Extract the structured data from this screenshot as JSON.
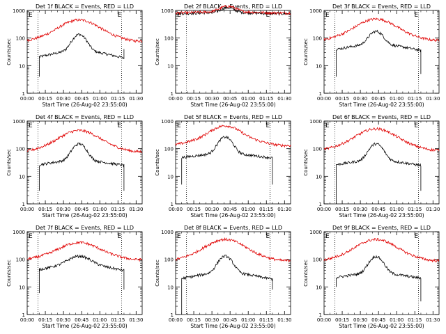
{
  "colors": {
    "events": "#000000",
    "lld": "#e00000",
    "axes": "#000000",
    "background": "#ffffff"
  },
  "chart_data": [
    {
      "type": "line",
      "title": "Det 1f BLACK = Events, RED = LLD",
      "ylabel": "Counts/sec",
      "xlabel": "Start Time (26-Aug-02 23:55:00)",
      "yscale": "log",
      "ylim": [
        1,
        1000
      ],
      "xlim": [
        "00:00",
        "01:35"
      ],
      "x_ticks": [
        "00:00",
        "00:15",
        "00:30",
        "00:45",
        "01:00",
        "01:15",
        "01:30"
      ],
      "y_ticks": [
        "1",
        "10",
        "100",
        "1000"
      ],
      "markers": [
        {
          "label": "E",
          "time": "00:09"
        },
        {
          "label": "E",
          "time": "01:18"
        }
      ],
      "series": [
        {
          "name": "Events",
          "start": "00:10",
          "end": "01:20",
          "base": 25,
          "bump": 4,
          "bump_center": "00:43",
          "bump_width": 5,
          "wave": 0.7,
          "edges": {
            "left": [
              4,
              25
            ],
            "right": [
              40,
              40
            ]
          }
        },
        {
          "name": "LLD",
          "start": "00:00",
          "end": "01:35",
          "base": 130,
          "bump": 2.5,
          "bump_center": "00:43",
          "bump_width": 12,
          "wave": 0.8,
          "edges": null
        }
      ]
    },
    {
      "type": "line",
      "title": "Det 2f BLACK = Events, RED = LLD",
      "ylabel": "Counts/sec",
      "xlabel": "Start Time (26-Aug-02 23:55:00)",
      "yscale": "log",
      "ylim": [
        1,
        1000
      ],
      "xlim": [
        "00:00",
        "01:35"
      ],
      "x_ticks": [
        "00:00",
        "00:15",
        "00:30",
        "00:45",
        "01:00",
        "01:15",
        "01:30"
      ],
      "y_ticks": [
        "1",
        "10",
        "100",
        "1000"
      ],
      "markers": [
        {
          "label": "E",
          "time": "00:09"
        },
        {
          "label": "E",
          "time": "01:18"
        }
      ],
      "series": [
        {
          "name": "Events",
          "start": "00:00",
          "end": "01:35",
          "base": 800,
          "bump": 1.5,
          "bump_center": "00:43",
          "bump_width": 5,
          "wave": 0.1,
          "edges": {
            "left": [
              30,
              800
            ],
            "right": [
              800,
              10
            ]
          }
        },
        {
          "name": "LLD",
          "start": "00:00",
          "end": "01:35",
          "base": 850,
          "bump": 1.6,
          "bump_center": "00:43",
          "bump_width": 6,
          "wave": 0.1,
          "edges": null
        }
      ]
    },
    {
      "type": "line",
      "title": "Det 3f BLACK = Events, RED = LLD",
      "ylabel": "Counts/sec",
      "xlabel": "Start Time (26-Aug-02 23:55:00)",
      "yscale": "log",
      "ylim": [
        1,
        1000
      ],
      "xlim": [
        "00:00",
        "01:35"
      ],
      "x_ticks": [
        "00:00",
        "00:15",
        "00:30",
        "00:45",
        "01:00",
        "01:15",
        "01:30"
      ],
      "y_ticks": [
        "1",
        "10",
        "100",
        "1000"
      ],
      "markers": [
        {
          "label": "E",
          "time": "00:09"
        },
        {
          "label": "E",
          "time": "01:18"
        }
      ],
      "series": [
        {
          "name": "Events",
          "start": "00:10",
          "end": "01:20",
          "base": 45,
          "bump": 3,
          "bump_center": "00:43",
          "bump_width": 5,
          "wave": 0.6,
          "edges": {
            "left": [
              4,
              45
            ],
            "right": [
              55,
              5
            ]
          }
        },
        {
          "name": "LLD",
          "start": "00:00",
          "end": "01:35",
          "base": 140,
          "bump": 2.5,
          "bump_center": "00:43",
          "bump_width": 12,
          "wave": 0.8,
          "edges": null
        }
      ]
    },
    {
      "type": "line",
      "title": "Det 4f BLACK = Events, RED = LLD",
      "ylabel": "Counts/sec",
      "xlabel": "Start Time (26-Aug-02 23:55:00)",
      "yscale": "log",
      "ylim": [
        1,
        1000
      ],
      "xlim": [
        "00:00",
        "01:35"
      ],
      "x_ticks": [
        "00:00",
        "00:15",
        "00:30",
        "00:45",
        "01:00",
        "01:15",
        "01:30"
      ],
      "y_ticks": [
        "1",
        "10",
        "100",
        "1000"
      ],
      "markers": [
        {
          "label": "E",
          "time": "00:09"
        },
        {
          "label": "E",
          "time": "01:18"
        }
      ],
      "series": [
        {
          "name": "Events",
          "start": "00:10",
          "end": "01:20",
          "base": 30,
          "bump": 4,
          "bump_center": "00:43",
          "bump_width": 5,
          "wave": 0.5,
          "edges": {
            "left": [
              3,
              30
            ],
            "right": [
              40,
              3
            ]
          }
        },
        {
          "name": "LLD",
          "start": "00:00",
          "end": "01:35",
          "base": 130,
          "bump": 2.5,
          "bump_center": "00:43",
          "bump_width": 12,
          "wave": 0.8,
          "edges": null
        }
      ]
    },
    {
      "type": "line",
      "title": "Det 5f BLACK = Events, RED = LLD",
      "ylabel": "Counts/sec",
      "xlabel": "Start Time (26-Aug-02 23:55:00)",
      "yscale": "log",
      "ylim": [
        1,
        1000
      ],
      "xlim": [
        "00:00",
        "01:35"
      ],
      "x_ticks": [
        "00:00",
        "00:15",
        "00:30",
        "00:45",
        "01:00",
        "01:15",
        "01:30"
      ],
      "y_ticks": [
        "1",
        "10",
        "100",
        "1000"
      ],
      "markers": [
        {
          "label": "E",
          "time": "00:09"
        },
        {
          "label": "E",
          "time": "01:18"
        }
      ],
      "series": [
        {
          "name": "Events",
          "start": "00:05",
          "end": "01:20",
          "base": 55,
          "bump": 4,
          "bump_center": "00:41",
          "bump_width": 5,
          "wave": 0.4,
          "edges": {
            "left": [
              5,
              55
            ],
            "right": [
              55,
              5
            ]
          }
        },
        {
          "name": "LLD",
          "start": "00:00",
          "end": "01:35",
          "base": 200,
          "bump": 2.5,
          "bump_center": "00:41",
          "bump_width": 10,
          "wave": 0.7,
          "edges": null
        }
      ]
    },
    {
      "type": "line",
      "title": "Det 6f BLACK = Events, RED = LLD",
      "ylabel": "Counts/sec",
      "xlabel": "Start Time (26-Aug-02 23:55:00)",
      "yscale": "log",
      "ylim": [
        1,
        1000
      ],
      "xlim": [
        "00:00",
        "01:35"
      ],
      "x_ticks": [
        "00:00",
        "00:15",
        "00:30",
        "00:45",
        "01:00",
        "01:15",
        "01:30"
      ],
      "y_ticks": [
        "1",
        "10",
        "100",
        "1000"
      ],
      "markers": [
        {
          "label": "E",
          "time": "00:09"
        },
        {
          "label": "E",
          "time": "01:18"
        }
      ],
      "series": [
        {
          "name": "Events",
          "start": "00:10",
          "end": "01:20",
          "base": 30,
          "bump": 4,
          "bump_center": "00:43",
          "bump_width": 5,
          "wave": 0.5,
          "edges": {
            "left": [
              1,
              30
            ],
            "right": [
              30,
              3
            ]
          }
        },
        {
          "name": "LLD",
          "start": "00:00",
          "end": "01:35",
          "base": 150,
          "bump": 2.5,
          "bump_center": "00:43",
          "bump_width": 12,
          "wave": 0.8,
          "edges": null
        }
      ]
    },
    {
      "type": "line",
      "title": "Det 7f BLACK = Events, RED = LLD",
      "ylabel": "Counts/sec",
      "xlabel": "Start Time (26-Aug-02 23:55:00)",
      "yscale": "log",
      "ylim": [
        1,
        1000
      ],
      "xlim": [
        "00:00",
        "01:35"
      ],
      "x_ticks": [
        "00:00",
        "00:15",
        "00:30",
        "00:45",
        "01:00",
        "01:15",
        "01:30"
      ],
      "y_ticks": [
        "1",
        "10",
        "100",
        "1000"
      ],
      "markers": [
        {
          "label": "E",
          "time": "00:09"
        },
        {
          "label": "E",
          "time": "01:18"
        }
      ],
      "series": [
        {
          "name": "Events",
          "start": "00:10",
          "end": "01:20",
          "base": 50,
          "bump": 2,
          "bump_center": "00:43",
          "bump_width": 8,
          "wave": 0.6,
          "edges": {
            "left": [
              6,
              50
            ],
            "right": [
              60,
              8
            ]
          }
        },
        {
          "name": "LLD",
          "start": "00:00",
          "end": "01:35",
          "base": 150,
          "bump": 2,
          "bump_center": "00:43",
          "bump_width": 12,
          "wave": 0.7,
          "edges": null
        }
      ]
    },
    {
      "type": "line",
      "title": "Det 8f BLACK = Events, RED = LLD",
      "ylabel": "Counts/sec",
      "xlabel": "Start Time (26-Aug-02 23:55:00)",
      "yscale": "log",
      "ylim": [
        1,
        1000
      ],
      "xlim": [
        "00:00",
        "01:35"
      ],
      "x_ticks": [
        "00:00",
        "00:15",
        "00:30",
        "00:45",
        "01:00",
        "01:15",
        "01:30"
      ],
      "y_ticks": [
        "1",
        "10",
        "100",
        "1000"
      ],
      "markers": [
        {
          "label": "E",
          "time": "00:09"
        },
        {
          "label": "E",
          "time": "01:18"
        }
      ],
      "series": [
        {
          "name": "Events",
          "start": "00:05",
          "end": "01:20",
          "base": 25,
          "bump": 4,
          "bump_center": "00:41",
          "bump_width": 5,
          "wave": 0.6,
          "edges": {
            "left": [
              1,
              25
            ],
            "right": [
              80,
              8
            ]
          }
        },
        {
          "name": "LLD",
          "start": "00:00",
          "end": "01:35",
          "base": 150,
          "bump": 2.5,
          "bump_center": "00:41",
          "bump_width": 12,
          "wave": 0.8,
          "edges": null
        }
      ]
    },
    {
      "type": "line",
      "title": "Det 9f BLACK = Events, RED = LLD",
      "ylabel": "Counts/sec",
      "xlabel": "Start Time (26-Aug-02 23:55:00)",
      "yscale": "log",
      "ylim": [
        1,
        1000
      ],
      "xlim": [
        "00:00",
        "01:35"
      ],
      "x_ticks": [
        "00:00",
        "00:15",
        "00:30",
        "00:45",
        "01:00",
        "01:15",
        "01:30"
      ],
      "y_ticks": [
        "1",
        "10",
        "100",
        "1000"
      ],
      "markers": [
        {
          "label": "E",
          "time": "00:09"
        },
        {
          "label": "E",
          "time": "01:18"
        }
      ],
      "series": [
        {
          "name": "Events",
          "start": "00:10",
          "end": "01:20",
          "base": 25,
          "bump": 4,
          "bump_center": "00:43",
          "bump_width": 5,
          "wave": 0.5,
          "edges": {
            "left": [
              10,
              25
            ],
            "right": [
              40,
              3
            ]
          }
        },
        {
          "name": "LLD",
          "start": "00:00",
          "end": "01:35",
          "base": 150,
          "bump": 2.5,
          "bump_center": "00:43",
          "bump_width": 12,
          "wave": 0.8,
          "edges": null
        }
      ]
    }
  ]
}
